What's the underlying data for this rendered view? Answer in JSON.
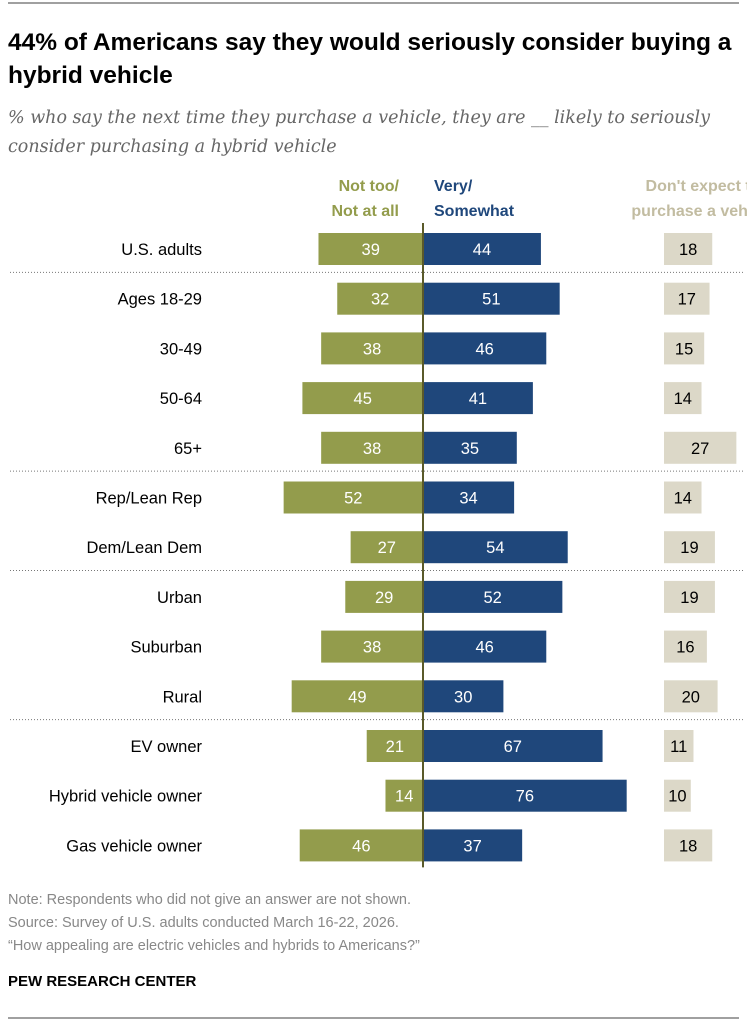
{
  "title": "44% of Americans say they would seriously consider buying a hybrid vehicle",
  "subtitle": "% who say the next time they purchase a vehicle, they are __ likely to seriously consider purchasing a hybrid vehicle",
  "notes": [
    "Note: Respondents who did not give an answer are not shown.",
    "Source: Survey of U.S. adults conducted March 16-22, 2026.",
    "“How appealing are electric vehicles and hybrids to Americans?”"
  ],
  "brand": "PEW RESEARCH CENTER",
  "chart_data": {
    "type": "bar",
    "orientation": "horizontal-diverging",
    "categories": [
      "U.S. adults",
      "Ages 18-29",
      "30-49",
      "50-64",
      "65+",
      "Rep/Lean Rep",
      "Dem/Lean Dem",
      "Urban",
      "Suburban",
      "Rural",
      "EV owner",
      "Hybrid vehicle owner",
      "Gas vehicle owner"
    ],
    "group_dividers_after": [
      "U.S. adults",
      "65+",
      "Dem/Lean Dem",
      "Rural"
    ],
    "series": [
      {
        "name": "Not too/\nNot at all",
        "color": "#939c4c",
        "direction": "left",
        "values": [
          39,
          32,
          38,
          45,
          38,
          52,
          27,
          29,
          38,
          49,
          21,
          14,
          46
        ]
      },
      {
        "name": "Very/\nSomewhat",
        "color": "#1f477b",
        "direction": "right",
        "values": [
          44,
          51,
          46,
          41,
          35,
          34,
          54,
          52,
          46,
          30,
          67,
          76,
          37
        ]
      },
      {
        "name": "Don't expect to\npurchase a vehicle",
        "color": "#dcd8c8",
        "label_color": "#c2bca1",
        "direction": "separate",
        "values": [
          18,
          17,
          15,
          14,
          27,
          14,
          19,
          19,
          16,
          20,
          11,
          10,
          18
        ]
      }
    ]
  }
}
